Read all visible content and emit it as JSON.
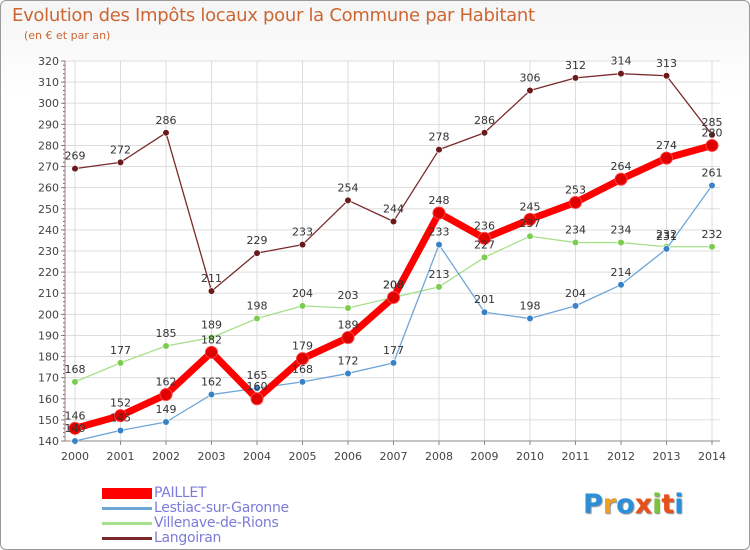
{
  "title": "Evolution des Impôts locaux pour la Commune par Habitant",
  "subtitle": "(en € et par an)",
  "logo": {
    "text": "Proxiti",
    "letters": [
      "P",
      "r",
      "o",
      "x",
      "i",
      "t",
      "i"
    ],
    "colors": [
      "#2a8fd8",
      "#f0a020",
      "#2a8fd8",
      "#e8501a",
      "#7cc242",
      "#e8501a",
      "#2a8fd8"
    ]
  },
  "chart_data": {
    "type": "line",
    "title": "Evolution des Impôts locaux pour la Commune par Habitant",
    "subtitle": "(en € et par an)",
    "xlabel": "",
    "ylabel": "",
    "x": [
      "2000",
      "2001",
      "2002",
      "2003",
      "2004",
      "2005",
      "2006",
      "2007",
      "2008",
      "2009",
      "2010",
      "2011",
      "2012",
      "2013",
      "2014"
    ],
    "ylim": [
      140,
      320
    ],
    "yticks": [
      140,
      150,
      160,
      170,
      180,
      190,
      200,
      210,
      220,
      230,
      240,
      250,
      260,
      270,
      280,
      290,
      300,
      310,
      320
    ],
    "grid": true,
    "legend_position": "bottom-left",
    "series": [
      {
        "name": "PAILLET",
        "color": "#ff0000",
        "dot": "#e00000",
        "values": [
          146,
          152,
          162,
          182,
          160,
          179,
          189,
          208,
          248,
          236,
          245,
          253,
          264,
          274,
          280
        ],
        "labels": [
          "146",
          "152",
          "162",
          "182",
          "160",
          "179",
          "189",
          "208",
          "248",
          "236",
          "245",
          "253",
          "264",
          "274",
          "280"
        ]
      },
      {
        "name": "Lestiac-sur-Garonne",
        "color": "#6ea6d8",
        "dot": "#3a82c8",
        "values": [
          140,
          145,
          149,
          162,
          165,
          168,
          172,
          177,
          233,
          201,
          198,
          204,
          214,
          231,
          261
        ],
        "labels": [
          "140",
          "145",
          "149",
          "162",
          "165",
          "168",
          "172",
          "177",
          "233",
          "201",
          "198",
          "204",
          "214",
          "231",
          "261"
        ]
      },
      {
        "name": "Villenave-de-Rions",
        "color": "#a6e08a",
        "dot": "#7ccc50",
        "values": [
          168,
          177,
          185,
          189,
          198,
          204,
          203,
          208,
          213,
          227,
          237,
          234,
          234,
          232,
          232
        ],
        "labels": [
          "168",
          "177",
          "185",
          "189",
          "198",
          "204",
          "203",
          "208",
          "213",
          "227",
          "237",
          "234",
          "234",
          "232",
          "232"
        ]
      },
      {
        "name": "Langoiran",
        "color": "#7a2a2a",
        "dot": "#6a1a1a",
        "values": [
          269,
          272,
          286,
          211,
          229,
          233,
          254,
          244,
          278,
          286,
          306,
          312,
          314,
          313,
          285
        ],
        "labels": [
          "269",
          "272",
          "286",
          "211",
          "229",
          "233",
          "254",
          "244",
          "278",
          "286",
          "306",
          "312",
          "314",
          "313",
          "285"
        ]
      }
    ]
  }
}
